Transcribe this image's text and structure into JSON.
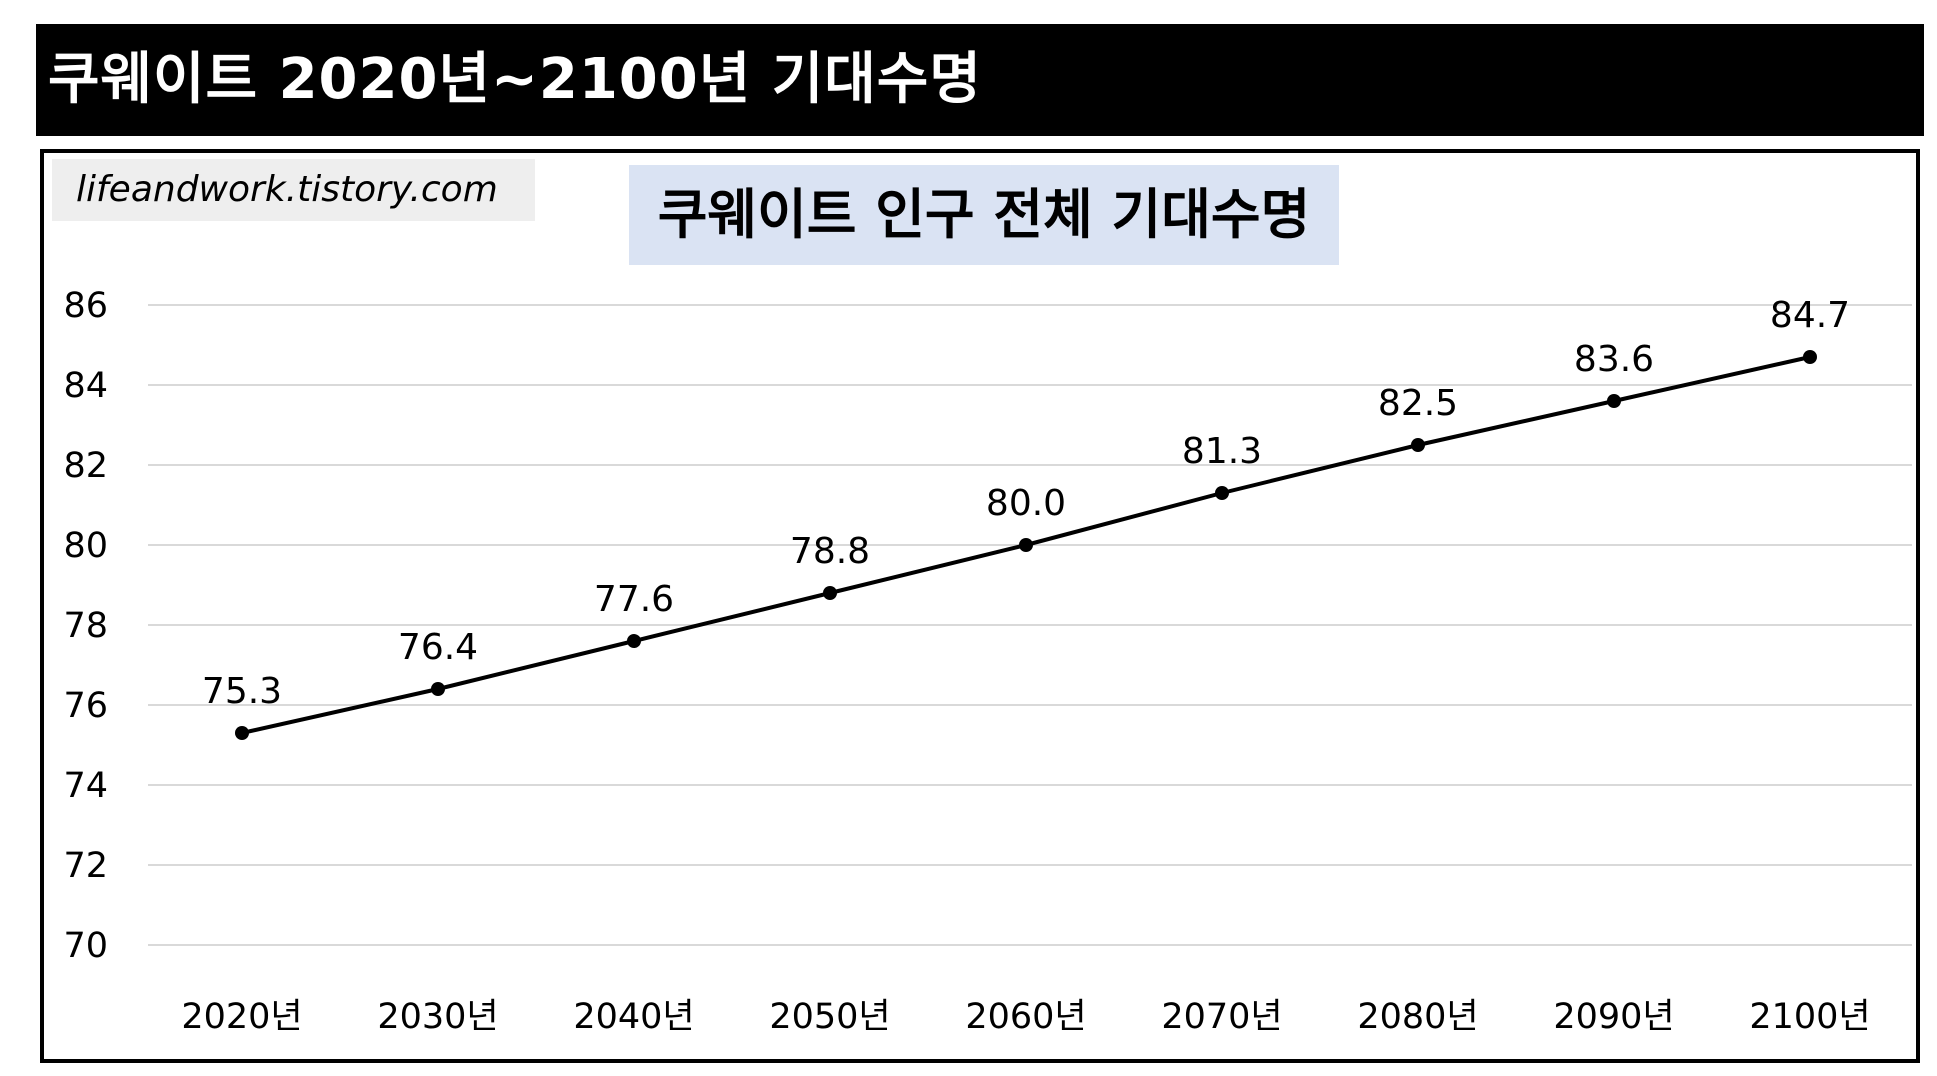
{
  "header": {
    "title": "쿠웨이트 2020년~2100년 기대수명"
  },
  "watermark": "lifeandwork.tistory.com",
  "colors": {
    "header_background": "#000000",
    "header_text": "#ffffff",
    "title_background": "#dae3f3",
    "line": "#000000",
    "gridline": "#d9d9d9",
    "watermark_background": "#eeeeee"
  },
  "chart_data": {
    "type": "line",
    "title": "쿠웨이트 인구 전체 기대수명",
    "xlabel": "",
    "ylabel": "",
    "categories": [
      "2020년",
      "2030년",
      "2040년",
      "2050년",
      "2060년",
      "2070년",
      "2080년",
      "2090년",
      "2100년"
    ],
    "series": [
      {
        "values": [
          75.3,
          76.4,
          77.6,
          78.8,
          80.0,
          81.3,
          82.5,
          83.6,
          84.7
        ],
        "labels": [
          "75.3",
          "76.4",
          "77.6",
          "78.8",
          "80.0",
          "81.3",
          "82.5",
          "83.6",
          "84.7"
        ]
      }
    ],
    "ylim": [
      70,
      86
    ],
    "yticks": [
      70,
      72,
      74,
      76,
      78,
      80,
      82,
      84,
      86
    ],
    "grid": true,
    "markers": true,
    "legend": "none"
  }
}
